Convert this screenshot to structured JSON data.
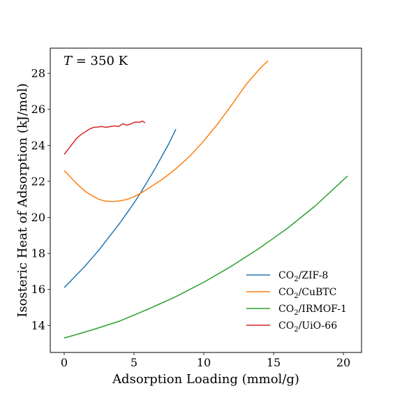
{
  "chart_data": {
    "type": "line",
    "title": "",
    "xlabel": "Adsorption Loading (mmol/g)",
    "ylabel": "Isosteric Heat of Adsorption (kJ/mol)",
    "xlim": [
      -1.0,
      21.3
    ],
    "ylim": [
      12.5,
      29.4
    ],
    "xticks": [
      0,
      5,
      10,
      15,
      20
    ],
    "yticks": [
      14,
      16,
      18,
      20,
      22,
      24,
      26,
      28
    ],
    "grid": false,
    "legend_position": "lower-right",
    "annotation": {
      "symbol": "T",
      "text": " = 350 K"
    },
    "series": [
      {
        "name": "CO2/ZIF-8",
        "name_base": "CO",
        "name_sub": "2",
        "name_suffix": "/ZIF-8",
        "color": "#1f77b4",
        "x": [
          0,
          0.5,
          1,
          1.5,
          2,
          2.5,
          3,
          3.5,
          4,
          4.5,
          5,
          5.5,
          6,
          6.5,
          7,
          7.5,
          8
        ],
        "y": [
          16.1,
          16.5,
          16.9,
          17.3,
          17.75,
          18.2,
          18.7,
          19.2,
          19.7,
          20.25,
          20.8,
          21.4,
          22.05,
          22.7,
          23.4,
          24.1,
          24.9
        ]
      },
      {
        "name": "CO2/CuBTC",
        "name_base": "CO",
        "name_sub": "2",
        "name_suffix": "/CuBTC",
        "color": "#ff7f0e",
        "x": [
          0,
          0.5,
          1,
          1.5,
          2,
          2.5,
          3,
          3.5,
          4,
          4.5,
          5,
          5.5,
          6,
          7,
          8,
          9,
          10,
          11,
          12,
          13,
          14,
          14.6
        ],
        "y": [
          22.6,
          22.2,
          21.8,
          21.45,
          21.2,
          21.0,
          20.9,
          20.88,
          20.92,
          21.0,
          21.15,
          21.35,
          21.6,
          22.1,
          22.7,
          23.4,
          24.25,
          25.2,
          26.25,
          27.35,
          28.25,
          28.7
        ]
      },
      {
        "name": "CO2/IRMOF-1",
        "name_base": "CO",
        "name_sub": "2",
        "name_suffix": "/IRMOF-1",
        "color": "#2ca02c",
        "x": [
          0,
          2,
          4,
          6,
          8,
          10,
          12,
          14,
          16,
          18,
          20.3
        ],
        "y": [
          13.3,
          13.75,
          14.25,
          14.9,
          15.6,
          16.4,
          17.3,
          18.3,
          19.4,
          20.65,
          22.3
        ]
      },
      {
        "name": "CO2/UiO-66",
        "name_base": "CO",
        "name_sub": "2",
        "name_suffix": "/UiO-66",
        "color": "#d62728",
        "x": [
          0,
          0.3,
          0.6,
          0.9,
          1.2,
          1.5,
          1.8,
          2.1,
          2.4,
          2.7,
          3.0,
          3.3,
          3.6,
          3.9,
          4.2,
          4.5,
          4.8,
          5.1,
          5.4,
          5.6,
          5.8
        ],
        "y": [
          23.5,
          23.8,
          24.1,
          24.4,
          24.6,
          24.75,
          24.9,
          25.0,
          25.02,
          25.05,
          25.0,
          25.05,
          25.08,
          25.05,
          25.2,
          25.12,
          25.2,
          25.3,
          25.28,
          25.35,
          25.25
        ]
      }
    ]
  }
}
